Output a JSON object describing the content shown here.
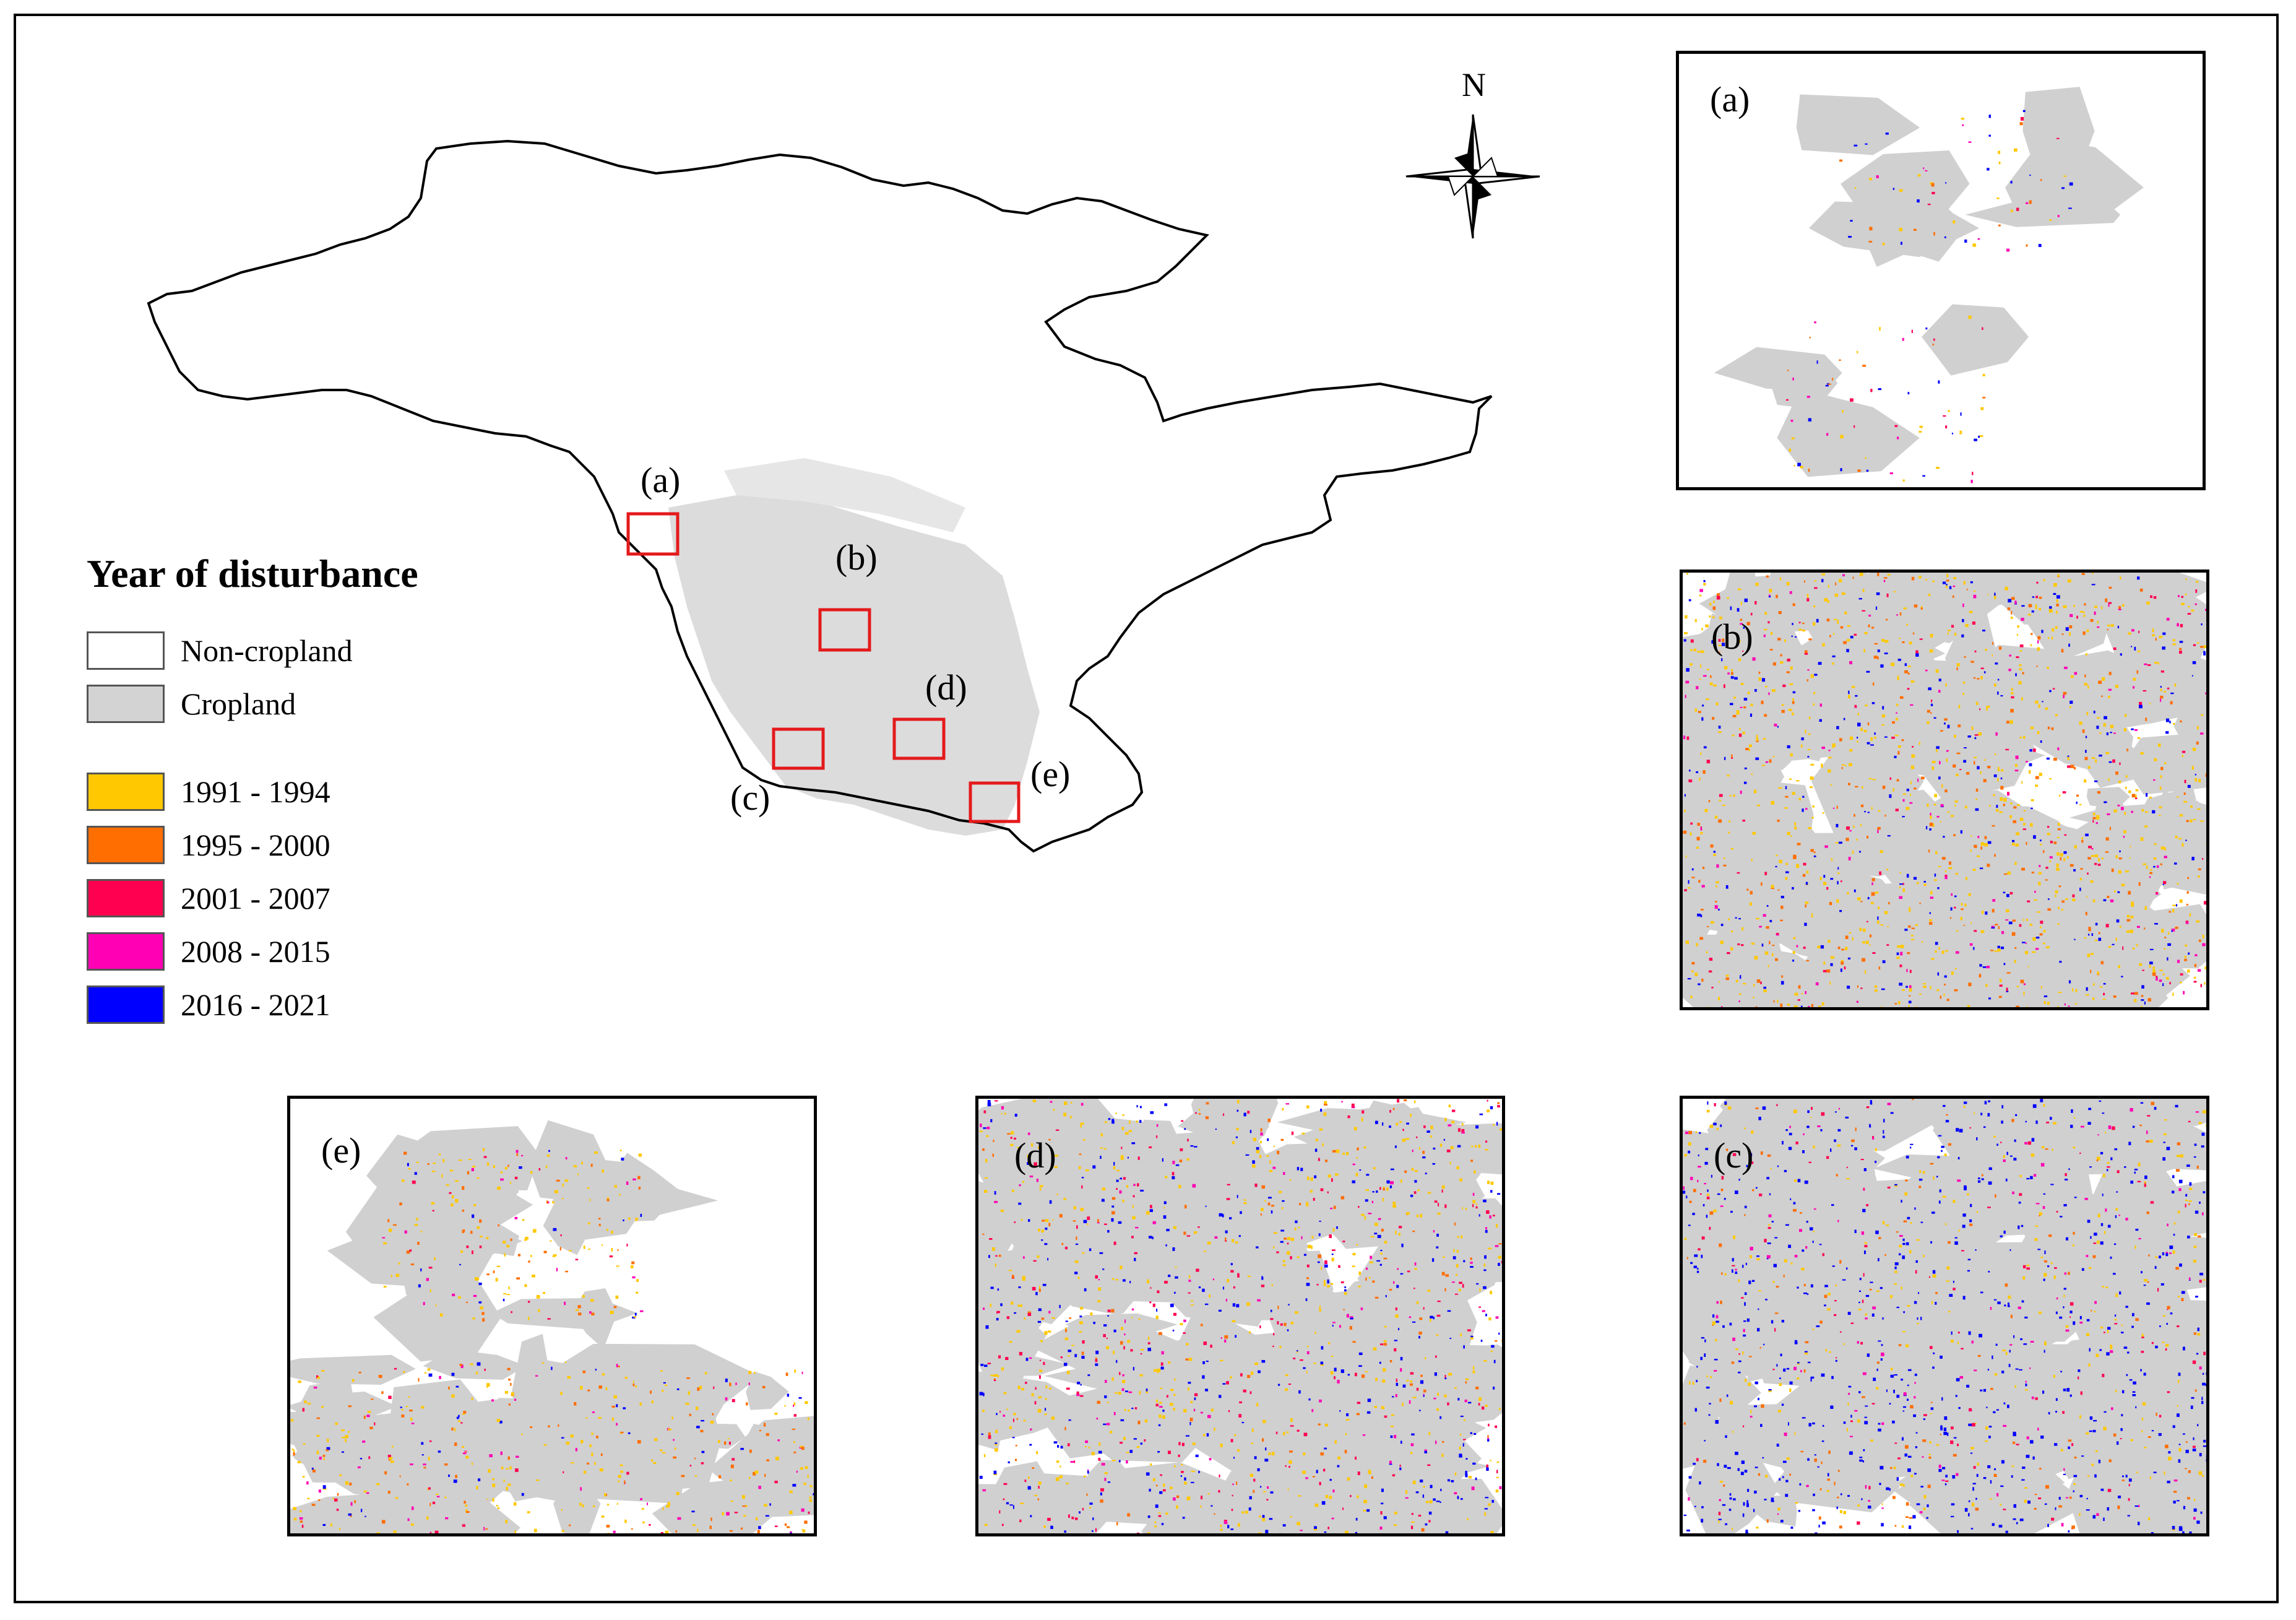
{
  "legend": {
    "title": "Year of disturbance",
    "items": [
      {
        "label": "Non-cropland",
        "color": "#ffffff"
      },
      {
        "label": "Cropland",
        "color": "#d3d3d3"
      }
    ],
    "years": [
      {
        "label": "1991 - 1994",
        "color": "#ffc800"
      },
      {
        "label": "1995 - 2000",
        "color": "#ff6e00"
      },
      {
        "label": "2001 - 2007",
        "color": "#ff0050"
      },
      {
        "label": "2008 - 2015",
        "color": "#ff00b4"
      },
      {
        "label": "2016 - 2021",
        "color": "#0000ff"
      }
    ]
  },
  "north_arrow": {
    "label": "N"
  },
  "map": {
    "region_labels": {
      "a": "(a)",
      "b": "(b)",
      "c": "(c)",
      "d": "(d)",
      "e": "(e)"
    },
    "box_color": "#e41a1c",
    "cropland_color": "#d3d3d3"
  },
  "insets": {
    "a": {
      "label": "(a)"
    },
    "b": {
      "label": "(b)"
    },
    "c": {
      "label": "(c)"
    },
    "d": {
      "label": "(d)"
    },
    "e": {
      "label": "(e)"
    }
  }
}
